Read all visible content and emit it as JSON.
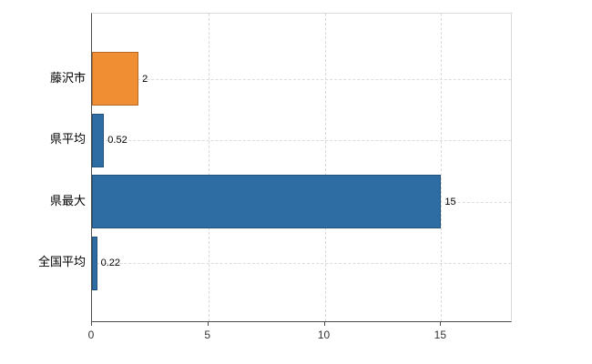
{
  "chart_data": {
    "type": "bar",
    "orientation": "horizontal",
    "title": "",
    "categories": [
      "藤沢市",
      "県平均",
      "県最大",
      "全国平均"
    ],
    "values": [
      2,
      0.52,
      15,
      0.22
    ],
    "value_labels": [
      "2",
      "0.52",
      "15",
      "0.22"
    ],
    "bar_colors": [
      "#ef8e33",
      "#2e6da4",
      "#2e6da4",
      "#2e6da4"
    ],
    "xlim": [
      0,
      18
    ],
    "xticks": [
      0,
      5,
      10,
      15
    ],
    "xtick_labels": [
      "0",
      "5",
      "10",
      "15"
    ],
    "grid": "light dashed vertical lines at x ticks and dashed horizontal lines at category centers",
    "legend": "none",
    "colors": {
      "axis": "#4d4d4d",
      "frame": "#d9d9d9",
      "gridline": "#dcdcdc",
      "background": "#ffffff",
      "orange": "#ef8e33",
      "blue": "#2e6da4"
    }
  }
}
